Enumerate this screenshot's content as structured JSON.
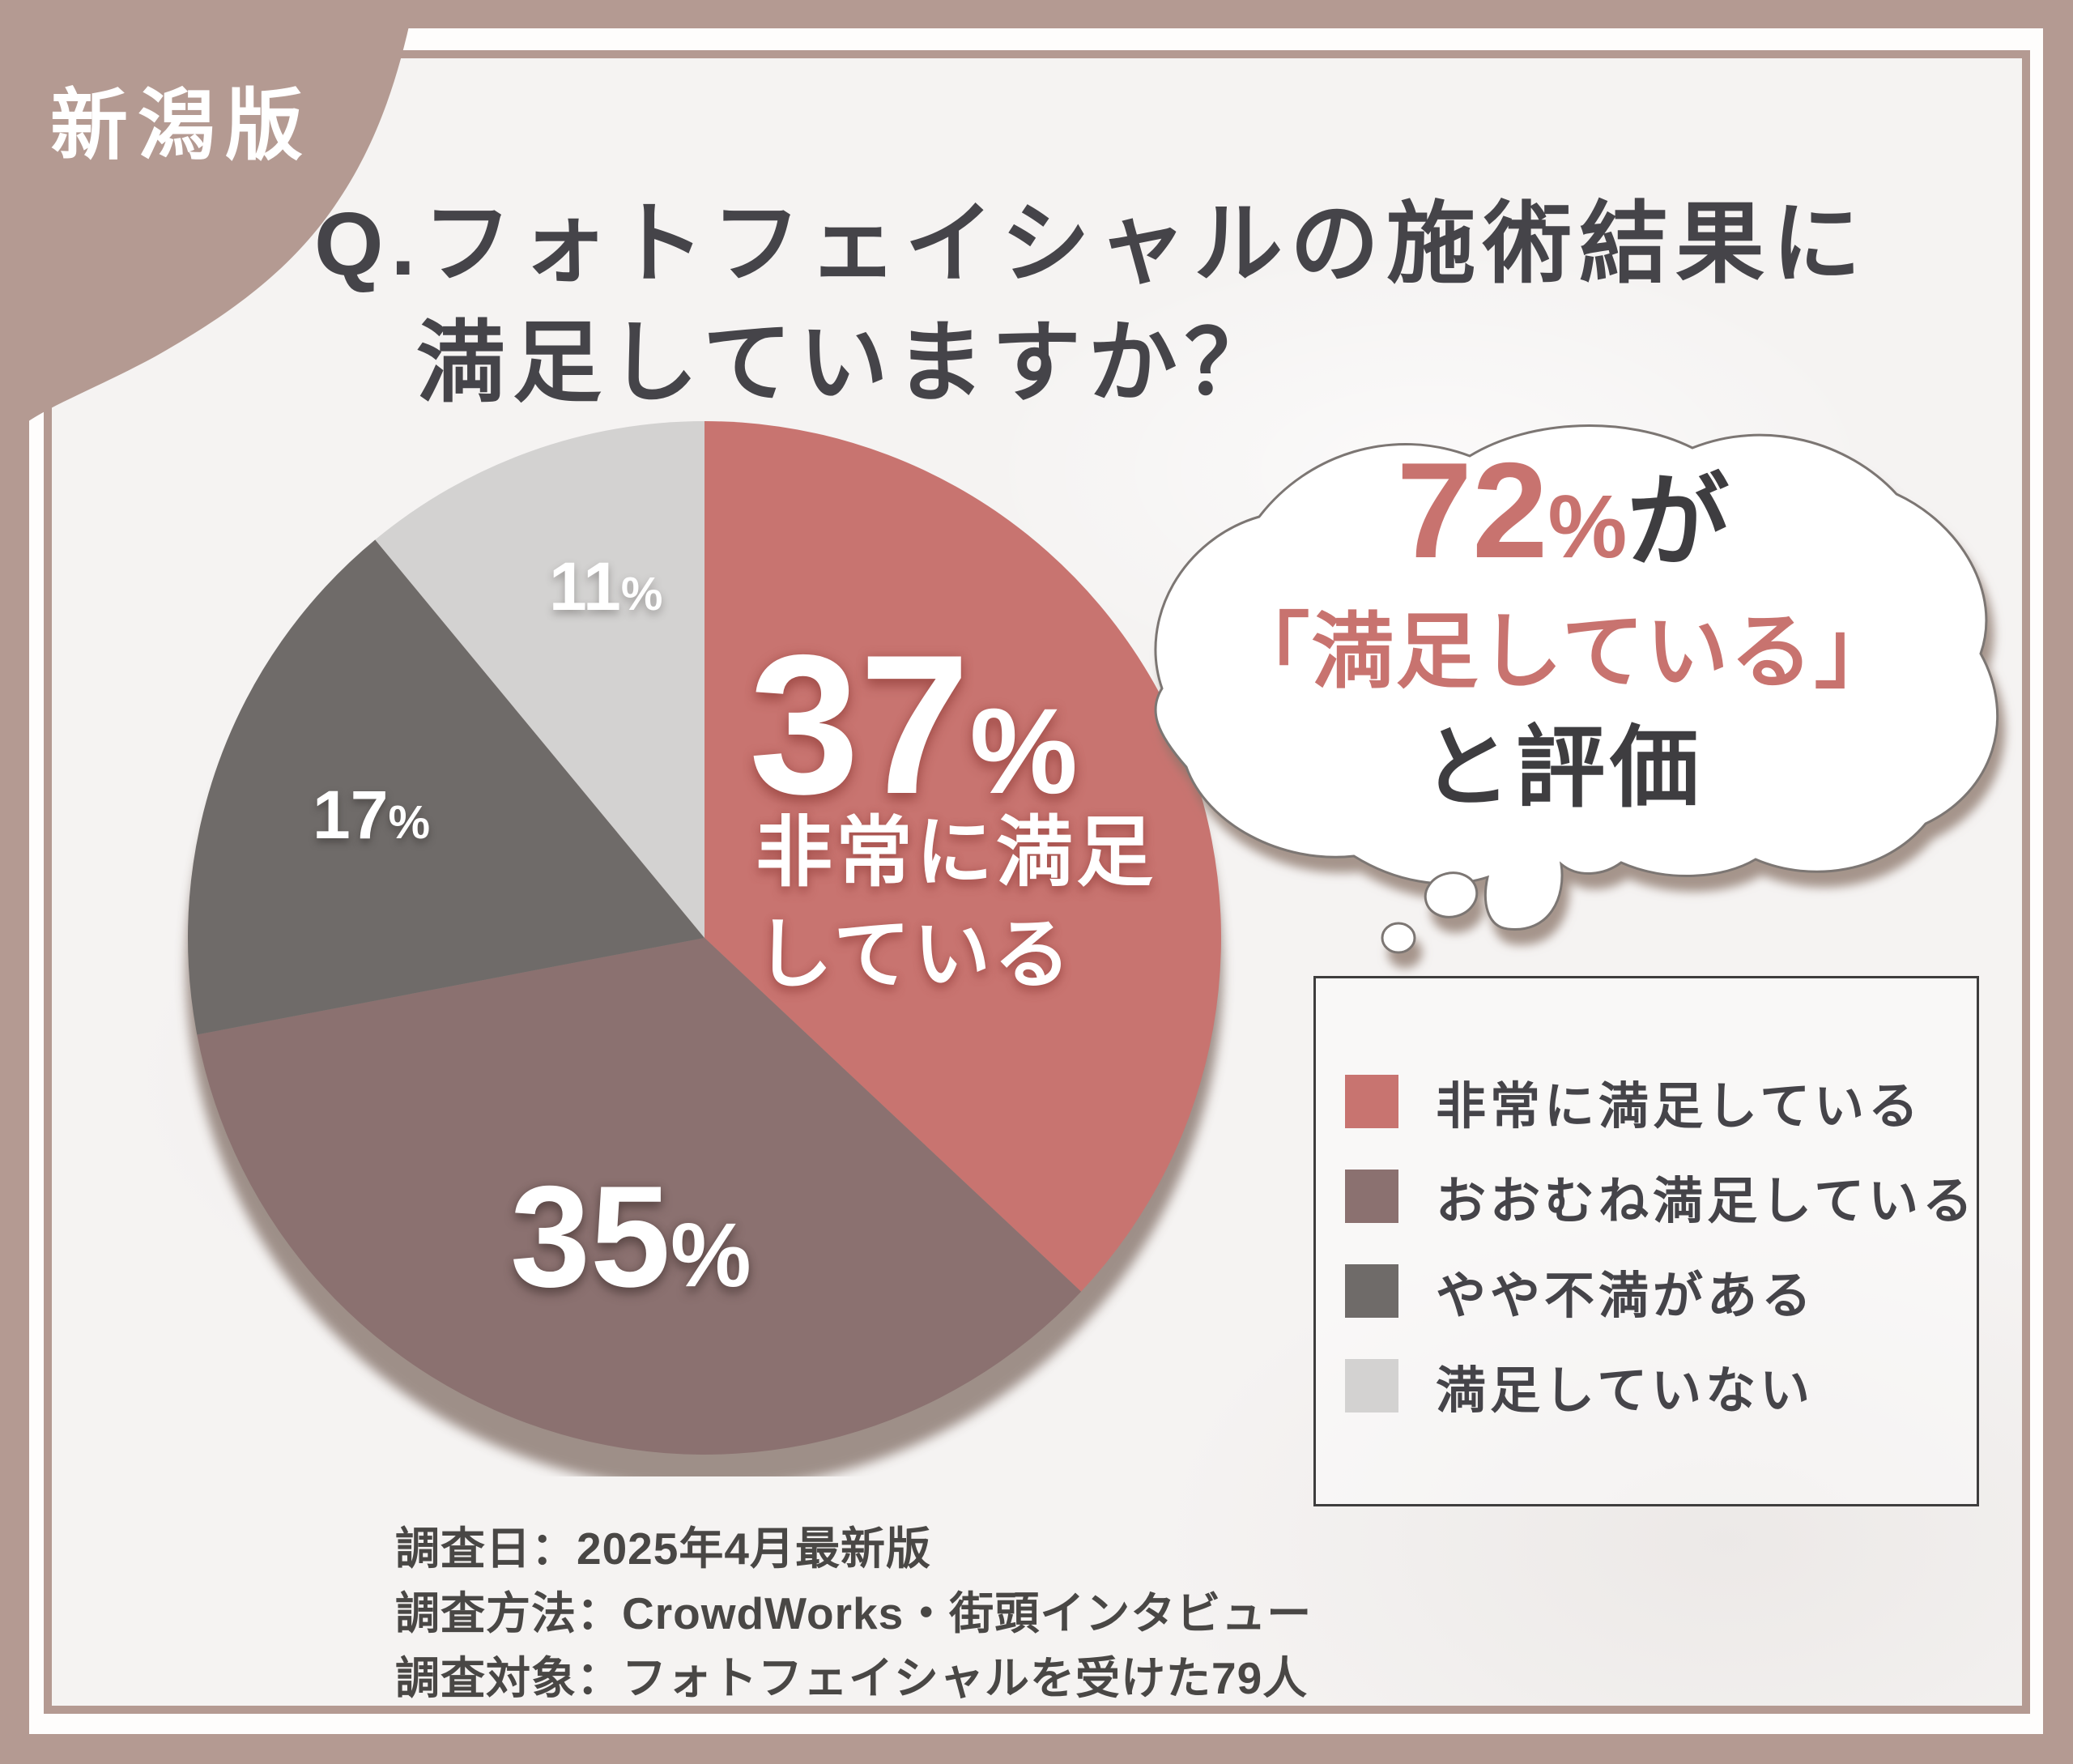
{
  "badge": {
    "label": "新潟版"
  },
  "title": {
    "line1": "Q.フォトフェイシャルの施術結果に",
    "line2": "満足していますか？"
  },
  "bubble": {
    "percent_num": "72",
    "percent_sign": "%",
    "suffix": "が",
    "line2": "「満足している」",
    "line3": "と評価"
  },
  "chart_data": {
    "type": "pie",
    "title": "フォトフェイシャルの施術結果に満足していますか？",
    "start_angle": "12-oclock",
    "direction": "clockwise",
    "slices": [
      {
        "label": "非常に満足している",
        "percent": 37,
        "color": "#c87470",
        "display": {
          "num": "37",
          "sign": "%"
        },
        "callout": [
          "非常に満足",
          "している"
        ]
      },
      {
        "label": "おおむね満足している",
        "percent": 35,
        "color": "#8b7170",
        "display": {
          "num": "35",
          "sign": "%"
        }
      },
      {
        "label": "やや不満がある",
        "percent": 17,
        "color": "#6f6b69",
        "display": {
          "num": "17",
          "sign": "%"
        }
      },
      {
        "label": "満足していない",
        "percent": 11,
        "color": "#d3d2d1",
        "display": {
          "num": "11",
          "sign": "%"
        }
      }
    ],
    "summary": "72%が「満足している」と評価",
    "legend_position": "right-bottom-box"
  },
  "footnotes": {
    "line1": "調査日：2025年4月最新版",
    "line2": "調査方法：CrowdWorks・街頭インタビュー",
    "line3": "調査対象：フォトフェイシャルを受けた79人"
  },
  "colors": {
    "frame_brown": "#b49a92",
    "background": "#f5f3f2",
    "accent_salmon": "#c8736f",
    "text_dark": "#454449",
    "legend_border": "#3e3d3d",
    "bubble_outline": "#7c7673",
    "pie_shadow": "#8f7e76"
  }
}
